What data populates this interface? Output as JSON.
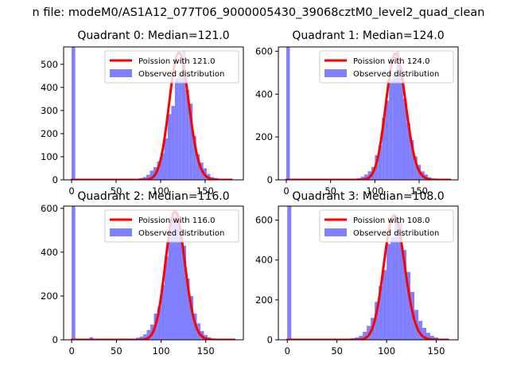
{
  "figure": {
    "suptitle": "n file: modeM0/AS1A12_077T06_9000005430_39068cztM0_level2_quad_clean"
  },
  "chart_data": [
    {
      "type": "bar",
      "title": "Quadrant 0: Median=121.0",
      "xlim": [
        -9,
        193
      ],
      "ylim": [
        0,
        575
      ],
      "xticks": [
        0,
        50,
        100,
        150
      ],
      "yticks": [
        0,
        100,
        200,
        300,
        400,
        500
      ],
      "grid": false,
      "legend_position": "top-right",
      "legend": [
        {
          "label": "Poission with 121.0",
          "kind": "line"
        },
        {
          "label": "Observed distribution",
          "kind": "patch"
        }
      ],
      "hist": {
        "bin_width": 4,
        "bins": [
          [
            0,
            575
          ],
          [
            20,
            3
          ],
          [
            60,
            2
          ],
          [
            76,
            8
          ],
          [
            80,
            12
          ],
          [
            84,
            22
          ],
          [
            88,
            40
          ],
          [
            92,
            55
          ],
          [
            96,
            80
          ],
          [
            100,
            115
          ],
          [
            104,
            180
          ],
          [
            108,
            285
          ],
          [
            112,
            320
          ],
          [
            116,
            440
          ],
          [
            120,
            455
          ],
          [
            124,
            560
          ],
          [
            128,
            390
          ],
          [
            132,
            330
          ],
          [
            136,
            190
          ],
          [
            140,
            110
          ],
          [
            144,
            75
          ],
          [
            148,
            50
          ],
          [
            152,
            25
          ],
          [
            156,
            12
          ],
          [
            160,
            8
          ],
          [
            164,
            5
          ],
          [
            172,
            3
          ]
        ]
      },
      "poisson": {
        "mean": 121.0,
        "scale": 550,
        "x_range": [
          0,
          180
        ]
      }
    },
    {
      "type": "bar",
      "title": "Quadrant 1: Median=124.0",
      "xlim": [
        -9,
        194
      ],
      "ylim": [
        0,
        620
      ],
      "xticks": [
        0,
        50,
        100,
        150
      ],
      "yticks": [
        0,
        200,
        400,
        600
      ],
      "grid": false,
      "legend_position": "top-right",
      "legend": [
        {
          "label": "Poission with 124.0",
          "kind": "line"
        },
        {
          "label": "Observed distribution",
          "kind": "patch"
        }
      ],
      "hist": {
        "bin_width": 4,
        "bins": [
          [
            0,
            620
          ],
          [
            20,
            3
          ],
          [
            64,
            3
          ],
          [
            80,
            8
          ],
          [
            84,
            15
          ],
          [
            88,
            25
          ],
          [
            92,
            40
          ],
          [
            96,
            60
          ],
          [
            100,
            115
          ],
          [
            104,
            160
          ],
          [
            108,
            290
          ],
          [
            112,
            370
          ],
          [
            116,
            470
          ],
          [
            120,
            505
          ],
          [
            124,
            600
          ],
          [
            128,
            520
          ],
          [
            132,
            380
          ],
          [
            136,
            265
          ],
          [
            140,
            185
          ],
          [
            144,
            110
          ],
          [
            148,
            70
          ],
          [
            152,
            40
          ],
          [
            156,
            25
          ],
          [
            160,
            12
          ],
          [
            164,
            6
          ],
          [
            172,
            3
          ]
        ]
      },
      "poisson": {
        "mean": 124.0,
        "scale": 590,
        "x_range": [
          0,
          185
        ]
      }
    },
    {
      "type": "bar",
      "title": "Quadrant 2: Median=116.0",
      "xlim": [
        -9,
        192
      ],
      "ylim": [
        0,
        610
      ],
      "xticks": [
        0,
        50,
        100,
        150
      ],
      "yticks": [
        0,
        200,
        400,
        600
      ],
      "grid": false,
      "legend_position": "top-right",
      "legend": [
        {
          "label": "Poission with 116.0",
          "kind": "line"
        },
        {
          "label": "Observed distribution",
          "kind": "patch"
        }
      ],
      "hist": {
        "bin_width": 4,
        "bins": [
          [
            0,
            610
          ],
          [
            20,
            12
          ],
          [
            24,
            5
          ],
          [
            40,
            4
          ],
          [
            56,
            6
          ],
          [
            64,
            5
          ],
          [
            72,
            10
          ],
          [
            76,
            15
          ],
          [
            80,
            25
          ],
          [
            84,
            45
          ],
          [
            88,
            70
          ],
          [
            92,
            120
          ],
          [
            96,
            150
          ],
          [
            100,
            250
          ],
          [
            104,
            380
          ],
          [
            108,
            490
          ],
          [
            112,
            560
          ],
          [
            116,
            580
          ],
          [
            120,
            510
          ],
          [
            124,
            430
          ],
          [
            128,
            280
          ],
          [
            132,
            200
          ],
          [
            136,
            120
          ],
          [
            140,
            75
          ],
          [
            144,
            40
          ],
          [
            148,
            22
          ],
          [
            152,
            12
          ],
          [
            156,
            6
          ],
          [
            164,
            3
          ]
        ]
      },
      "poisson": {
        "mean": 116.0,
        "scale": 585,
        "x_range": [
          0,
          182
        ]
      }
    },
    {
      "type": "bar",
      "title": "Quadrant 3: Median=108.0",
      "xlim": [
        -9,
        172
      ],
      "ylim": [
        0,
        670
      ],
      "xticks": [
        0,
        50,
        100,
        150
      ],
      "yticks": [
        0,
        200,
        400,
        600
      ],
      "grid": false,
      "legend_position": "top-right",
      "legend": [
        {
          "label": "Poission with 108.0",
          "kind": "line"
        },
        {
          "label": "Observed distribution",
          "kind": "patch"
        }
      ],
      "hist": {
        "bin_width": 4,
        "bins": [
          [
            0,
            670
          ],
          [
            20,
            4
          ],
          [
            48,
            3
          ],
          [
            56,
            5
          ],
          [
            64,
            8
          ],
          [
            68,
            12
          ],
          [
            72,
            20
          ],
          [
            76,
            40
          ],
          [
            80,
            70
          ],
          [
            84,
            110
          ],
          [
            88,
            190
          ],
          [
            92,
            270
          ],
          [
            96,
            350
          ],
          [
            100,
            480
          ],
          [
            104,
            515
          ],
          [
            108,
            620
          ],
          [
            112,
            590
          ],
          [
            116,
            450
          ],
          [
            120,
            340
          ],
          [
            124,
            240
          ],
          [
            128,
            150
          ],
          [
            132,
            95
          ],
          [
            136,
            60
          ],
          [
            140,
            35
          ],
          [
            144,
            20
          ],
          [
            148,
            12
          ],
          [
            152,
            6
          ],
          [
            156,
            3
          ]
        ]
      },
      "poisson": {
        "mean": 108.0,
        "scale": 625,
        "x_range": [
          0,
          162
        ]
      }
    }
  ]
}
